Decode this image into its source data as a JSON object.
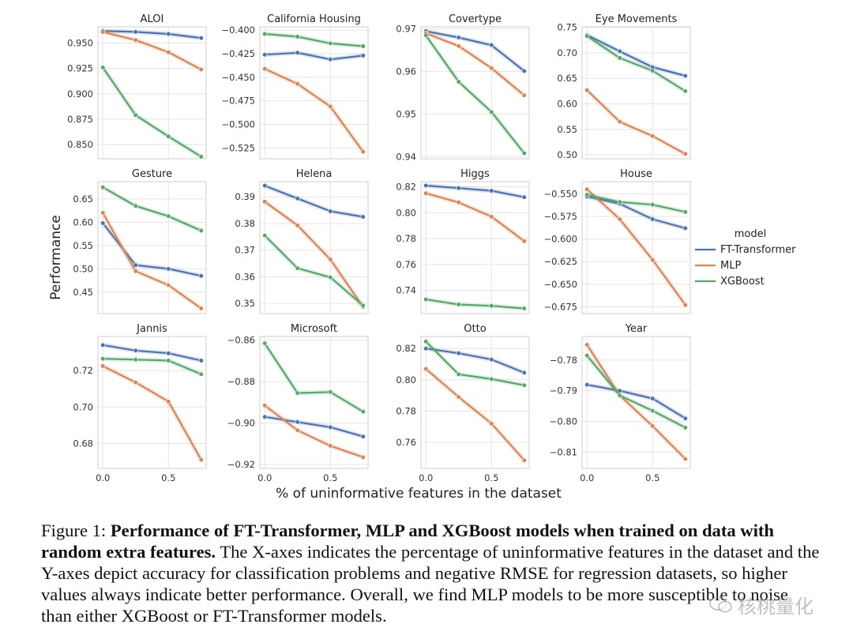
{
  "figure": {
    "ylabel": "Performance",
    "xlabel": "% of uninformative features in the dataset",
    "legend_title": "model",
    "x_ticks": [
      0.0,
      0.5
    ],
    "x_tick_labels": [
      "0.0",
      "0.5"
    ]
  },
  "colors": {
    "FT-Transformer": "#4c72b0",
    "MLP": "#dd8452",
    "XGBoost": "#55a868",
    "grid": "#e5e5e5"
  },
  "chart_data": [
    {
      "type": "line",
      "title": "ALOI",
      "x": [
        0,
        0.25,
        0.5,
        0.75
      ],
      "ylim": [
        0.836,
        0.966
      ],
      "yticks": [
        0.85,
        0.875,
        0.9,
        0.925,
        0.95
      ],
      "ytick_labels": [
        "0.850",
        "0.875",
        "0.900",
        "0.925",
        "0.950"
      ],
      "series": [
        {
          "name": "FT-Transformer",
          "values": [
            0.962,
            0.961,
            0.959,
            0.955
          ]
        },
        {
          "name": "MLP",
          "values": [
            0.961,
            0.953,
            0.941,
            0.924
          ]
        },
        {
          "name": "XGBoost",
          "values": [
            0.926,
            0.879,
            0.858,
            0.838
          ]
        }
      ]
    },
    {
      "type": "line",
      "title": "California Housing",
      "x": [
        0,
        0.25,
        0.5,
        0.75
      ],
      "ylim": [
        -0.5365,
        -0.3965
      ],
      "yticks": [
        -0.4,
        -0.425,
        -0.45,
        -0.475,
        -0.5,
        -0.525
      ],
      "ytick_labels": [
        "−0.400",
        "−0.425",
        "−0.450",
        "−0.475",
        "−0.500",
        "−0.525"
      ],
      "series": [
        {
          "name": "FT-Transformer",
          "values": [
            -0.426,
            -0.424,
            -0.431,
            -0.427
          ]
        },
        {
          "name": "MLP",
          "values": [
            -0.441,
            -0.457,
            -0.481,
            -0.529
          ]
        },
        {
          "name": "XGBoost",
          "values": [
            -0.404,
            -0.407,
            -0.414,
            -0.417
          ]
        }
      ]
    },
    {
      "type": "line",
      "title": "Covertype",
      "x": [
        0,
        0.25,
        0.5,
        0.75
      ],
      "ylim": [
        0.9395,
        0.9705
      ],
      "yticks": [
        0.94,
        0.95,
        0.96,
        0.97
      ],
      "ytick_labels": [
        "0.94",
        "0.95",
        "0.96",
        "0.97"
      ],
      "series": [
        {
          "name": "FT-Transformer",
          "values": [
            0.9695,
            0.968,
            0.9662,
            0.9601
          ]
        },
        {
          "name": "MLP",
          "values": [
            0.969,
            0.966,
            0.9608,
            0.9544
          ]
        },
        {
          "name": "XGBoost",
          "values": [
            0.9685,
            0.9576,
            0.9505,
            0.9408
          ]
        }
      ]
    },
    {
      "type": "line",
      "title": "Eye Movements",
      "x": [
        0,
        0.25,
        0.5,
        0.75
      ],
      "ylim": [
        0.4925,
        0.751
      ],
      "yticks": [
        0.5,
        0.55,
        0.6,
        0.65,
        0.7,
        0.75
      ],
      "ytick_labels": [
        "0.50",
        "0.55",
        "0.60",
        "0.65",
        "0.70",
        "0.75"
      ],
      "series": [
        {
          "name": "FT-Transformer",
          "values": [
            0.735,
            0.703,
            0.672,
            0.655
          ]
        },
        {
          "name": "MLP",
          "values": [
            0.627,
            0.565,
            0.537,
            0.502
          ]
        },
        {
          "name": "XGBoost",
          "values": [
            0.733,
            0.69,
            0.665,
            0.625
          ]
        }
      ]
    },
    {
      "type": "line",
      "title": "Gesture",
      "x": [
        0,
        0.25,
        0.5,
        0.75
      ],
      "ylim": [
        0.404,
        0.687
      ],
      "yticks": [
        0.45,
        0.5,
        0.55,
        0.6,
        0.65
      ],
      "ytick_labels": [
        "0.45",
        "0.50",
        "0.55",
        "0.60",
        "0.65"
      ],
      "series": [
        {
          "name": "FT-Transformer",
          "values": [
            0.598,
            0.508,
            0.5,
            0.485
          ]
        },
        {
          "name": "MLP",
          "values": [
            0.62,
            0.495,
            0.465,
            0.415
          ]
        },
        {
          "name": "XGBoost",
          "values": [
            0.675,
            0.635,
            0.613,
            0.582
          ]
        }
      ]
    },
    {
      "type": "line",
      "title": "Helena",
      "x": [
        0,
        0.25,
        0.5,
        0.75
      ],
      "ylim": [
        0.3462,
        0.3957
      ],
      "yticks": [
        0.35,
        0.36,
        0.37,
        0.38,
        0.39
      ],
      "ytick_labels": [
        "0.35",
        "0.36",
        "0.37",
        "0.38",
        "0.39"
      ],
      "series": [
        {
          "name": "FT-Transformer",
          "values": [
            0.3942,
            0.3894,
            0.3846,
            0.3825
          ]
        },
        {
          "name": "MLP",
          "values": [
            0.3882,
            0.3793,
            0.3665,
            0.3487
          ]
        },
        {
          "name": "XGBoost",
          "values": [
            0.3755,
            0.3632,
            0.3598,
            0.3492
          ]
        }
      ]
    },
    {
      "type": "line",
      "title": "Higgs",
      "x": [
        0,
        0.25,
        0.5,
        0.75
      ],
      "ylim": [
        0.722,
        0.824
      ],
      "yticks": [
        0.74,
        0.76,
        0.78,
        0.8,
        0.82
      ],
      "ytick_labels": [
        "0.74",
        "0.76",
        "0.78",
        "0.80",
        "0.82"
      ],
      "series": [
        {
          "name": "FT-Transformer",
          "values": [
            0.821,
            0.819,
            0.817,
            0.812
          ]
        },
        {
          "name": "MLP",
          "values": [
            0.815,
            0.808,
            0.797,
            0.778
          ]
        },
        {
          "name": "XGBoost",
          "values": [
            0.733,
            0.729,
            0.728,
            0.726
          ]
        }
      ]
    },
    {
      "type": "line",
      "title": "House",
      "x": [
        0,
        0.25,
        0.5,
        0.75
      ],
      "ylim": [
        -0.6825,
        -0.5365
      ],
      "yticks": [
        -0.55,
        -0.575,
        -0.6,
        -0.625,
        -0.65,
        -0.675
      ],
      "ytick_labels": [
        "−0.550",
        "−0.575",
        "−0.600",
        "−0.625",
        "−0.650",
        "−0.675"
      ],
      "series": [
        {
          "name": "FT-Transformer",
          "values": [
            -0.553,
            -0.561,
            -0.578,
            -0.588
          ]
        },
        {
          "name": "MLP",
          "values": [
            -0.545,
            -0.578,
            -0.623,
            -0.673
          ]
        },
        {
          "name": "XGBoost",
          "values": [
            -0.551,
            -0.559,
            -0.562,
            -0.57
          ]
        }
      ]
    },
    {
      "type": "line",
      "title": "Jannis",
      "x": [
        0,
        0.25,
        0.5,
        0.75
      ],
      "ylim": [
        0.6663,
        0.7387
      ],
      "yticks": [
        0.68,
        0.7,
        0.72
      ],
      "ytick_labels": [
        "0.68",
        "0.70",
        "0.72"
      ],
      "series": [
        {
          "name": "FT-Transformer",
          "values": [
            0.734,
            0.731,
            0.7295,
            0.7255
          ]
        },
        {
          "name": "MLP",
          "values": [
            0.7225,
            0.7135,
            0.703,
            0.671
          ]
        },
        {
          "name": "XGBoost",
          "values": [
            0.7265,
            0.726,
            0.7255,
            0.718
          ]
        }
      ]
    },
    {
      "type": "line",
      "title": "Microsoft",
      "x": [
        0,
        0.25,
        0.5,
        0.75
      ],
      "ylim": [
        -0.9219,
        -0.8582
      ],
      "yticks": [
        -0.86,
        -0.88,
        -0.9,
        -0.92
      ],
      "ytick_labels": [
        "−0.86",
        "−0.88",
        "−0.90",
        "−0.92"
      ],
      "series": [
        {
          "name": "FT-Transformer",
          "values": [
            -0.897,
            -0.8995,
            -0.902,
            -0.9065
          ]
        },
        {
          "name": "MLP",
          "values": [
            -0.8915,
            -0.9035,
            -0.911,
            -0.9165
          ]
        },
        {
          "name": "XGBoost",
          "values": [
            -0.8615,
            -0.8855,
            -0.885,
            -0.8945
          ]
        }
      ]
    },
    {
      "type": "line",
      "title": "Otto",
      "x": [
        0,
        0.25,
        0.5,
        0.75
      ],
      "ylim": [
        0.7433,
        0.8277
      ],
      "yticks": [
        0.76,
        0.78,
        0.8,
        0.82
      ],
      "ytick_labels": [
        "0.76",
        "0.78",
        "0.80",
        "0.82"
      ],
      "series": [
        {
          "name": "FT-Transformer",
          "values": [
            0.82,
            0.817,
            0.813,
            0.8045
          ]
        },
        {
          "name": "MLP",
          "values": [
            0.807,
            0.789,
            0.772,
            0.7485
          ]
        },
        {
          "name": "XGBoost",
          "values": [
            0.8245,
            0.8035,
            0.8005,
            0.7965
          ]
        }
      ]
    },
    {
      "type": "line",
      "title": "Year",
      "x": [
        0,
        0.25,
        0.5,
        0.75
      ],
      "ylim": [
        -0.8153,
        -0.7723
      ],
      "yticks": [
        -0.78,
        -0.79,
        -0.8,
        -0.81
      ],
      "ytick_labels": [
        "−0.78",
        "−0.79",
        "−0.80",
        "−0.81"
      ],
      "series": [
        {
          "name": "FT-Transformer",
          "values": [
            -0.788,
            -0.79,
            -0.7925,
            -0.799
          ]
        },
        {
          "name": "MLP",
          "values": [
            -0.775,
            -0.7915,
            -0.8015,
            -0.8122
          ]
        },
        {
          "name": "XGBoost",
          "values": [
            -0.7785,
            -0.7915,
            -0.7965,
            -0.802
          ]
        }
      ]
    }
  ],
  "caption": {
    "label": "Figure 1: ",
    "bold": "Performance of FT-Transformer, MLP and XGBoost models when trained on data with random extra features.",
    "text": " The X-axes indicates the percentage of uninformative features in the dataset and the Y-axes depict accuracy for classification problems and negative RMSE for regression datasets, so higher values always indicate better performance. Overall, we find MLP models to be more susceptible to noise than either XGBoost or FT-Transformer models."
  },
  "watermark": "核桃量化"
}
